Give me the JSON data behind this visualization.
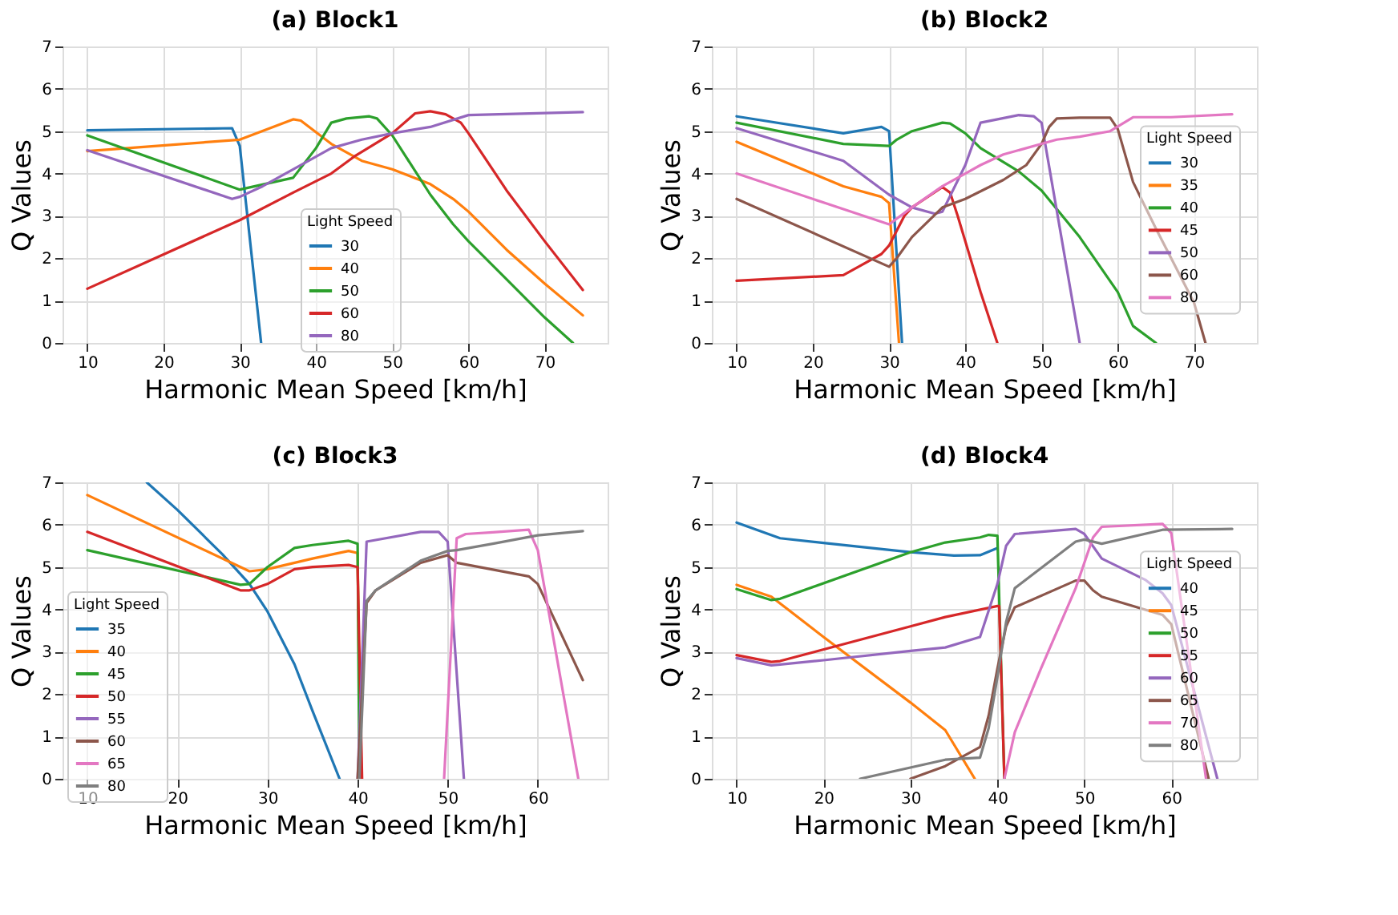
{
  "chart_data": [
    {
      "type": "line",
      "title": "(a) Block1",
      "xlabel": "Harmonic Mean Speed [km/h]",
      "ylabel": "Q Values",
      "legend_title": "Light Speed",
      "legend": "bottom",
      "grid": true,
      "xlim": [
        6.75,
        78.25
      ],
      "xticks": [
        10,
        20,
        30,
        40,
        50,
        60,
        70
      ],
      "ylim": [
        0,
        7
      ],
      "yticks": [
        0,
        1,
        2,
        3,
        4,
        5,
        6,
        7
      ],
      "series": [
        {
          "name": "30",
          "color": "#1f77b4",
          "x": [
            10,
            29,
            30,
            32.8
          ],
          "values": [
            5.02,
            5.07,
            4.65,
            0
          ]
        },
        {
          "name": "40",
          "color": "#ff7f0e",
          "x": [
            10,
            30,
            37,
            38,
            42,
            46,
            50,
            55,
            58,
            60,
            65,
            70,
            75
          ],
          "values": [
            4.53,
            4.8,
            5.28,
            5.25,
            4.7,
            4.3,
            4.1,
            3.75,
            3.4,
            3.1,
            2.2,
            1.4,
            0.65
          ]
        },
        {
          "name": "50",
          "color": "#2ca02c",
          "x": [
            10,
            30,
            37,
            40,
            42,
            44,
            47,
            48,
            50,
            55,
            58,
            60,
            65,
            70,
            73.7
          ],
          "values": [
            4.9,
            3.62,
            3.9,
            4.6,
            5.2,
            5.3,
            5.35,
            5.3,
            4.9,
            3.5,
            2.8,
            2.4,
            1.5,
            0.6,
            0
          ]
        },
        {
          "name": "60",
          "color": "#d62728",
          "x": [
            10,
            30,
            37,
            42,
            45,
            50,
            53,
            55,
            57,
            59,
            60,
            65,
            70,
            75
          ],
          "values": [
            1.28,
            2.9,
            3.55,
            4.0,
            4.4,
            4.95,
            5.42,
            5.47,
            5.4,
            5.2,
            4.95,
            3.6,
            2.4,
            1.25
          ]
        },
        {
          "name": "80",
          "color": "#9467bd",
          "x": [
            10,
            29,
            30,
            33,
            37,
            42,
            46,
            50,
            55,
            60,
            75
          ],
          "values": [
            4.55,
            3.4,
            3.45,
            3.7,
            4.1,
            4.6,
            4.8,
            4.95,
            5.1,
            5.38,
            5.45
          ]
        }
      ]
    },
    {
      "type": "line",
      "title": "(b) Block2",
      "xlabel": "Harmonic Mean Speed [km/h]",
      "ylabel": "Q Values",
      "legend_title": "Light Speed",
      "legend": "right",
      "grid": true,
      "xlim": [
        6.75,
        78.25
      ],
      "xticks": [
        10,
        20,
        30,
        40,
        50,
        60,
        70
      ],
      "ylim": [
        0,
        7
      ],
      "yticks": [
        0,
        1,
        2,
        3,
        4,
        5,
        6,
        7
      ],
      "series": [
        {
          "name": "30",
          "color": "#1f77b4",
          "x": [
            10,
            24,
            29,
            30,
            31.7
          ],
          "values": [
            5.35,
            4.95,
            5.1,
            5.0,
            0
          ]
        },
        {
          "name": "35",
          "color": "#ff7f0e",
          "x": [
            10,
            24,
            29,
            30,
            31.3
          ],
          "values": [
            4.75,
            3.7,
            3.45,
            3.3,
            0
          ]
        },
        {
          "name": "40",
          "color": "#2ca02c",
          "x": [
            10,
            24,
            30,
            31,
            33,
            37,
            38,
            40,
            42,
            47,
            50,
            55,
            60,
            62,
            65
          ],
          "values": [
            5.2,
            4.7,
            4.65,
            4.8,
            5.0,
            5.2,
            5.18,
            4.95,
            4.6,
            4.05,
            3.6,
            2.5,
            1.2,
            0.4,
            0
          ]
        },
        {
          "name": "45",
          "color": "#d62728",
          "x": [
            10,
            24,
            26,
            29,
            30,
            32,
            33,
            37,
            38,
            39,
            42,
            44.2
          ],
          "values": [
            1.47,
            1.6,
            1.8,
            2.1,
            2.3,
            3.0,
            3.2,
            3.68,
            3.55,
            3.0,
            1.2,
            0
          ]
        },
        {
          "name": "50",
          "color": "#9467bd",
          "x": [
            10,
            24,
            30,
            33,
            36,
            37,
            40,
            42,
            47,
            49,
            50,
            55
          ],
          "values": [
            5.07,
            4.3,
            3.5,
            3.2,
            3.05,
            3.1,
            4.2,
            5.2,
            5.38,
            5.35,
            5.2,
            0
          ]
        },
        {
          "name": "60",
          "color": "#8c564b",
          "x": [
            10,
            30,
            31,
            33,
            37,
            40,
            45,
            48,
            50,
            51,
            52,
            55,
            59,
            60,
            62,
            65,
            70,
            71.5
          ],
          "values": [
            3.4,
            1.8,
            2.0,
            2.5,
            3.2,
            3.4,
            3.85,
            4.2,
            4.7,
            5.1,
            5.3,
            5.32,
            5.32,
            5.05,
            3.8,
            2.7,
            0.95,
            0
          ]
        },
        {
          "name": "80",
          "color": "#e377c2",
          "x": [
            10,
            30,
            33,
            37,
            40,
            42,
            45,
            50,
            52,
            55,
            59,
            62,
            67,
            75
          ],
          "values": [
            4.0,
            2.8,
            3.2,
            3.7,
            4.0,
            4.2,
            4.45,
            4.7,
            4.8,
            4.87,
            5.0,
            5.33,
            5.33,
            5.4
          ]
        }
      ]
    },
    {
      "type": "line",
      "title": "(c) Block3",
      "xlabel": "Harmonic Mean Speed [km/h]",
      "ylabel": "Q Values",
      "legend_title": "Light Speed",
      "legend": "bottom left",
      "grid": true,
      "xlim": [
        7.25,
        67.75
      ],
      "xticks": [
        10,
        20,
        30,
        40,
        50,
        60
      ],
      "ylim": [
        0,
        7
      ],
      "yticks": [
        0,
        1,
        2,
        3,
        4,
        5,
        6,
        7
      ],
      "series": [
        {
          "name": "35",
          "color": "#1f77b4",
          "x": [
            16.6,
            20,
            25,
            28,
            30,
            33,
            35,
            38
          ],
          "values": [
            7,
            6.35,
            5.3,
            4.6,
            3.95,
            2.7,
            1.6,
            0
          ]
        },
        {
          "name": "40",
          "color": "#ff7f0e",
          "x": [
            10,
            28,
            30,
            35,
            39,
            40,
            40.3
          ],
          "values": [
            6.7,
            4.9,
            4.95,
            5.2,
            5.38,
            5.33,
            0
          ]
        },
        {
          "name": "45",
          "color": "#2ca02c",
          "x": [
            10,
            27,
            28,
            30,
            33,
            35,
            39,
            40,
            40.2
          ],
          "values": [
            5.4,
            4.58,
            4.6,
            5.0,
            5.45,
            5.52,
            5.62,
            5.55,
            0
          ]
        },
        {
          "name": "50",
          "color": "#d62728",
          "x": [
            10,
            27,
            28,
            30,
            33,
            35,
            39,
            40,
            40.5
          ],
          "values": [
            5.83,
            4.45,
            4.45,
            4.6,
            4.95,
            5.0,
            5.05,
            5.0,
            0
          ]
        },
        {
          "name": "55",
          "color": "#9467bd",
          "x": [
            40,
            41,
            47,
            49,
            50,
            51.8
          ],
          "values": [
            0,
            5.6,
            5.83,
            5.83,
            5.6,
            0
          ]
        },
        {
          "name": "60",
          "color": "#8c564b",
          "x": [
            40,
            41,
            42,
            47,
            50,
            51,
            59,
            60,
            65
          ],
          "values": [
            0,
            4.15,
            4.45,
            5.1,
            5.28,
            5.1,
            4.78,
            4.6,
            2.33
          ]
        },
        {
          "name": "65",
          "color": "#e377c2",
          "x": [
            49.6,
            51,
            52,
            55,
            59,
            60,
            64.5
          ],
          "values": [
            0,
            5.68,
            5.78,
            5.82,
            5.88,
            5.4,
            0
          ]
        },
        {
          "name": "80",
          "color": "#7f7f7f",
          "x": [
            40.2,
            41,
            42,
            47,
            50,
            51,
            55,
            60,
            65
          ],
          "values": [
            0,
            4.2,
            4.45,
            5.15,
            5.38,
            5.4,
            5.55,
            5.75,
            5.85
          ]
        }
      ]
    },
    {
      "type": "line",
      "title": "(d) Block4",
      "xlabel": "Harmonic Mean Speed [km/h]",
      "ylabel": "Q Values",
      "legend_title": "Light Speed",
      "legend": "right",
      "grid": true,
      "xlim": [
        7.15,
        69.85
      ],
      "xticks": [
        10,
        20,
        30,
        40,
        50,
        60
      ],
      "ylim": [
        0,
        7
      ],
      "yticks": [
        0,
        1,
        2,
        3,
        4,
        5,
        6,
        7
      ],
      "series": [
        {
          "name": "40",
          "color": "#1f77b4",
          "x": [
            10,
            15,
            20,
            30,
            35,
            38,
            40
          ],
          "values": [
            6.05,
            5.68,
            5.57,
            5.35,
            5.27,
            5.28,
            5.45
          ]
        },
        {
          "name": "45",
          "color": "#ff7f0e",
          "x": [
            10,
            14,
            20,
            30,
            34,
            37.4
          ],
          "values": [
            4.58,
            4.3,
            3.35,
            1.8,
            1.15,
            0
          ]
        },
        {
          "name": "50",
          "color": "#2ca02c",
          "x": [
            10,
            14,
            15,
            30,
            34,
            38,
            39,
            40,
            40.8
          ],
          "values": [
            4.48,
            4.22,
            4.25,
            5.35,
            5.58,
            5.7,
            5.76,
            5.74,
            0
          ]
        },
        {
          "name": "55",
          "color": "#d62728",
          "x": [
            10,
            14,
            15,
            30,
            34,
            40,
            40.2,
            40.8
          ],
          "values": [
            2.92,
            2.76,
            2.78,
            3.6,
            3.82,
            4.08,
            4.08,
            0
          ]
        },
        {
          "name": "60",
          "color": "#9467bd",
          "x": [
            10,
            14,
            15,
            20,
            30,
            34,
            38,
            40,
            41,
            42,
            49,
            50,
            52,
            57,
            59,
            60,
            65.3
          ],
          "values": [
            2.85,
            2.68,
            2.7,
            2.8,
            3.02,
            3.1,
            3.35,
            4.6,
            5.5,
            5.78,
            5.9,
            5.78,
            5.2,
            4.7,
            4.38,
            4.1,
            0
          ]
        },
        {
          "name": "65",
          "color": "#8c564b",
          "x": [
            30,
            34,
            38,
            39,
            40,
            41,
            42,
            49,
            50,
            51,
            52,
            59,
            60,
            64.3
          ],
          "values": [
            0,
            0.3,
            0.75,
            1.5,
            2.6,
            3.6,
            4.05,
            4.68,
            4.68,
            4.45,
            4.3,
            3.87,
            3.65,
            0
          ]
        },
        {
          "name": "70",
          "color": "#e377c2",
          "x": [
            40.8,
            42,
            45,
            49,
            51,
            52,
            59,
            60,
            64
          ],
          "values": [
            0,
            1.1,
            2.6,
            4.5,
            5.7,
            5.95,
            6.02,
            5.8,
            0
          ]
        },
        {
          "name": "80",
          "color": "#7f7f7f",
          "x": [
            24.2,
            34,
            38,
            39,
            40,
            41,
            42,
            49,
            50,
            52,
            59,
            67
          ],
          "values": [
            0,
            0.45,
            0.5,
            1.2,
            2.4,
            3.7,
            4.5,
            5.6,
            5.65,
            5.55,
            5.88,
            5.9
          ]
        }
      ]
    }
  ]
}
